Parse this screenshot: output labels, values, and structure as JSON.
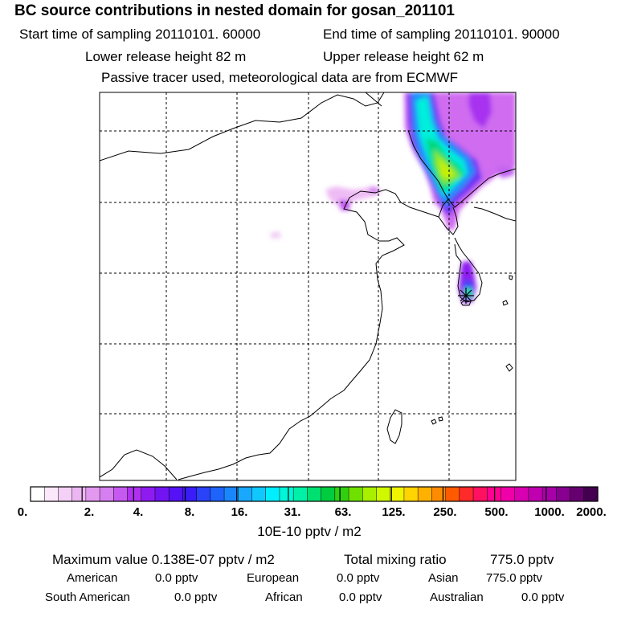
{
  "header": {
    "title": "BC  source contributions in nested domain for gosan_201101",
    "start_label": "Start time of sampling 20110101. 60000",
    "end_label": "End time of sampling 20110101. 90000",
    "lower_label": "Lower release height   82 m",
    "upper_label": "Upper release height   62 m",
    "note": "Passive tracer used, meteorological data are from ECMWF"
  },
  "colorbar": {
    "colors": [
      "#ffffff",
      "#fbe8fb",
      "#f4d0f6",
      "#ebb6f2",
      "#e399ef",
      "#d57ff0",
      "#c659f0",
      "#b030f0",
      "#8e1bf0",
      "#7213f2",
      "#5512f4",
      "#3a1cf6",
      "#2a42f8",
      "#1e64fa",
      "#1a86fb",
      "#18a8fd",
      "#10c8fe",
      "#00eeff",
      "#00f6d8",
      "#00f0a8",
      "#00e070",
      "#00cc40",
      "#30d010",
      "#70e000",
      "#a8f000",
      "#d0f800",
      "#f0f400",
      "#ffd400",
      "#ffb000",
      "#ff8c00",
      "#ff5a00",
      "#ff2a2a",
      "#ff1060",
      "#ff0090",
      "#f000a8",
      "#d800b0",
      "#c000b0",
      "#a800a8",
      "#880090",
      "#660070",
      "#440050"
    ],
    "labels": [
      "0.",
      "2.",
      "4.",
      "8.",
      "16.",
      "31.",
      "63.",
      "125.",
      "250.",
      "500.",
      "1000.",
      "2000."
    ],
    "units": "10E-10 pptv / m2"
  },
  "stats": {
    "maximum": "Maximum value  0.138E-07 pptv / m2",
    "total_label": "Total mixing ratio",
    "total_value": "775.0 pptv",
    "american_label": "American",
    "american_value": "0.0 pptv",
    "european_label": "European",
    "european_value": "0.0 pptv",
    "asian_label": "Asian",
    "asian_value": "775.0 pptv",
    "south_american_label": "South American",
    "south_american_value": "0.0 pptv",
    "african_label": "African",
    "african_value": "0.0 pptv",
    "australian_label": "Australian",
    "australian_value": "0.0 pptv"
  }
}
